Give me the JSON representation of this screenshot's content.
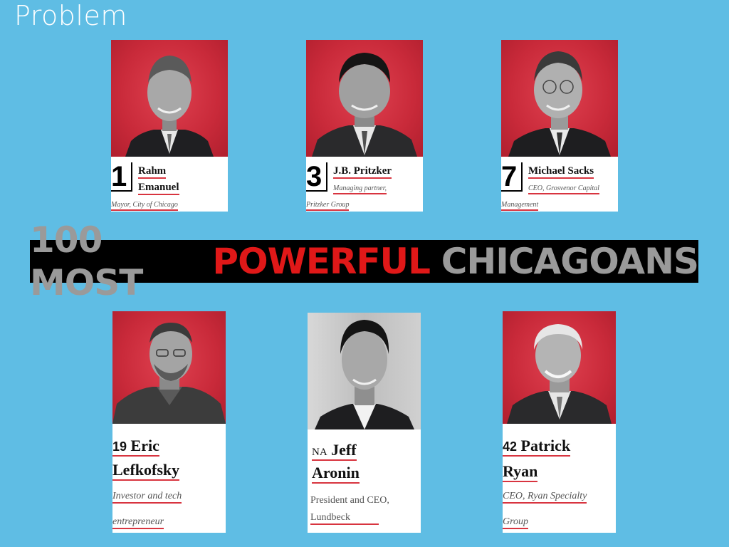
{
  "slide": {
    "title": "Problem"
  },
  "banner": {
    "part1": "100 MOST",
    "part2": "POWERFUL",
    "part3": "CHICAGOANS"
  },
  "top_row": [
    {
      "rank": "1",
      "name_line1": "Rahm",
      "name_line2": "Emanuel",
      "role": "Mayor, City of Chicago"
    },
    {
      "rank": "3",
      "name_line1": "J.B. Pritzker",
      "role_line1": "Managing partner,",
      "role_line2": "Pritzker Group"
    },
    {
      "rank": "7",
      "name_line1": "Michael Sacks",
      "role_line1": "CEO, Grosvenor Capital",
      "role_line2": "Management"
    }
  ],
  "bottom_row": [
    {
      "rank": "19",
      "name_line1": "Eric",
      "name_line2": "Lefkofsky",
      "role_line1": "Investor and tech",
      "role_line2": "entrepreneur"
    },
    {
      "rank": "NA",
      "name_line1": "Jeff",
      "name_line2": "Aronin",
      "role_line1": "President and CEO,",
      "role_line2": "Lundbeck"
    },
    {
      "rank": "42",
      "name_line1": "Patrick",
      "name_line2": "Ryan",
      "role_line1": "CEO, Ryan Specialty",
      "role_line2": "Group"
    }
  ],
  "colors": {
    "background": "#5fbde4",
    "accent_red": "#e01818",
    "photo_red": "#c92a3a",
    "underline": "#d8343f"
  }
}
